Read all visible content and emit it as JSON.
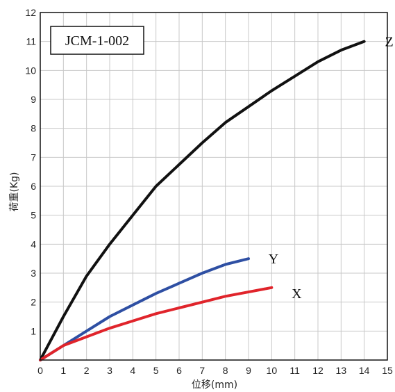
{
  "chart_data": {
    "type": "line",
    "title": "",
    "annotation_box": "JCM-1-002",
    "xlabel": "位移(mm)",
    "ylabel": "荷重(Kg)",
    "xlim": [
      0,
      15
    ],
    "ylim": [
      0,
      12
    ],
    "xticks": [
      0,
      1,
      2,
      3,
      4,
      5,
      6,
      7,
      8,
      9,
      10,
      11,
      12,
      13,
      14,
      15
    ],
    "yticks": [
      1,
      2,
      3,
      4,
      5,
      6,
      7,
      8,
      9,
      10,
      11,
      12
    ],
    "grid": true,
    "series": [
      {
        "name": "Z",
        "color": "#111111",
        "x": [
          0,
          1,
          2,
          3,
          4,
          5,
          6,
          7,
          8,
          9,
          10,
          11,
          12,
          13,
          14
        ],
        "y": [
          0,
          1.5,
          2.9,
          4.0,
          5.0,
          6.0,
          6.75,
          7.5,
          8.2,
          8.75,
          9.3,
          9.8,
          10.3,
          10.7,
          11.0
        ]
      },
      {
        "name": "Y",
        "color": "#2e4fa3",
        "x": [
          0,
          1,
          2,
          3,
          4,
          5,
          6,
          7,
          8,
          9
        ],
        "y": [
          0,
          0.5,
          1.0,
          1.5,
          1.9,
          2.3,
          2.65,
          3.0,
          3.3,
          3.5
        ]
      },
      {
        "name": "X",
        "color": "#e0242b",
        "x": [
          0,
          1,
          2,
          3,
          4,
          5,
          6,
          7,
          8,
          9,
          10
        ],
        "y": [
          0,
          0.5,
          0.8,
          1.1,
          1.35,
          1.6,
          1.8,
          2.0,
          2.2,
          2.35,
          2.5
        ]
      }
    ]
  }
}
